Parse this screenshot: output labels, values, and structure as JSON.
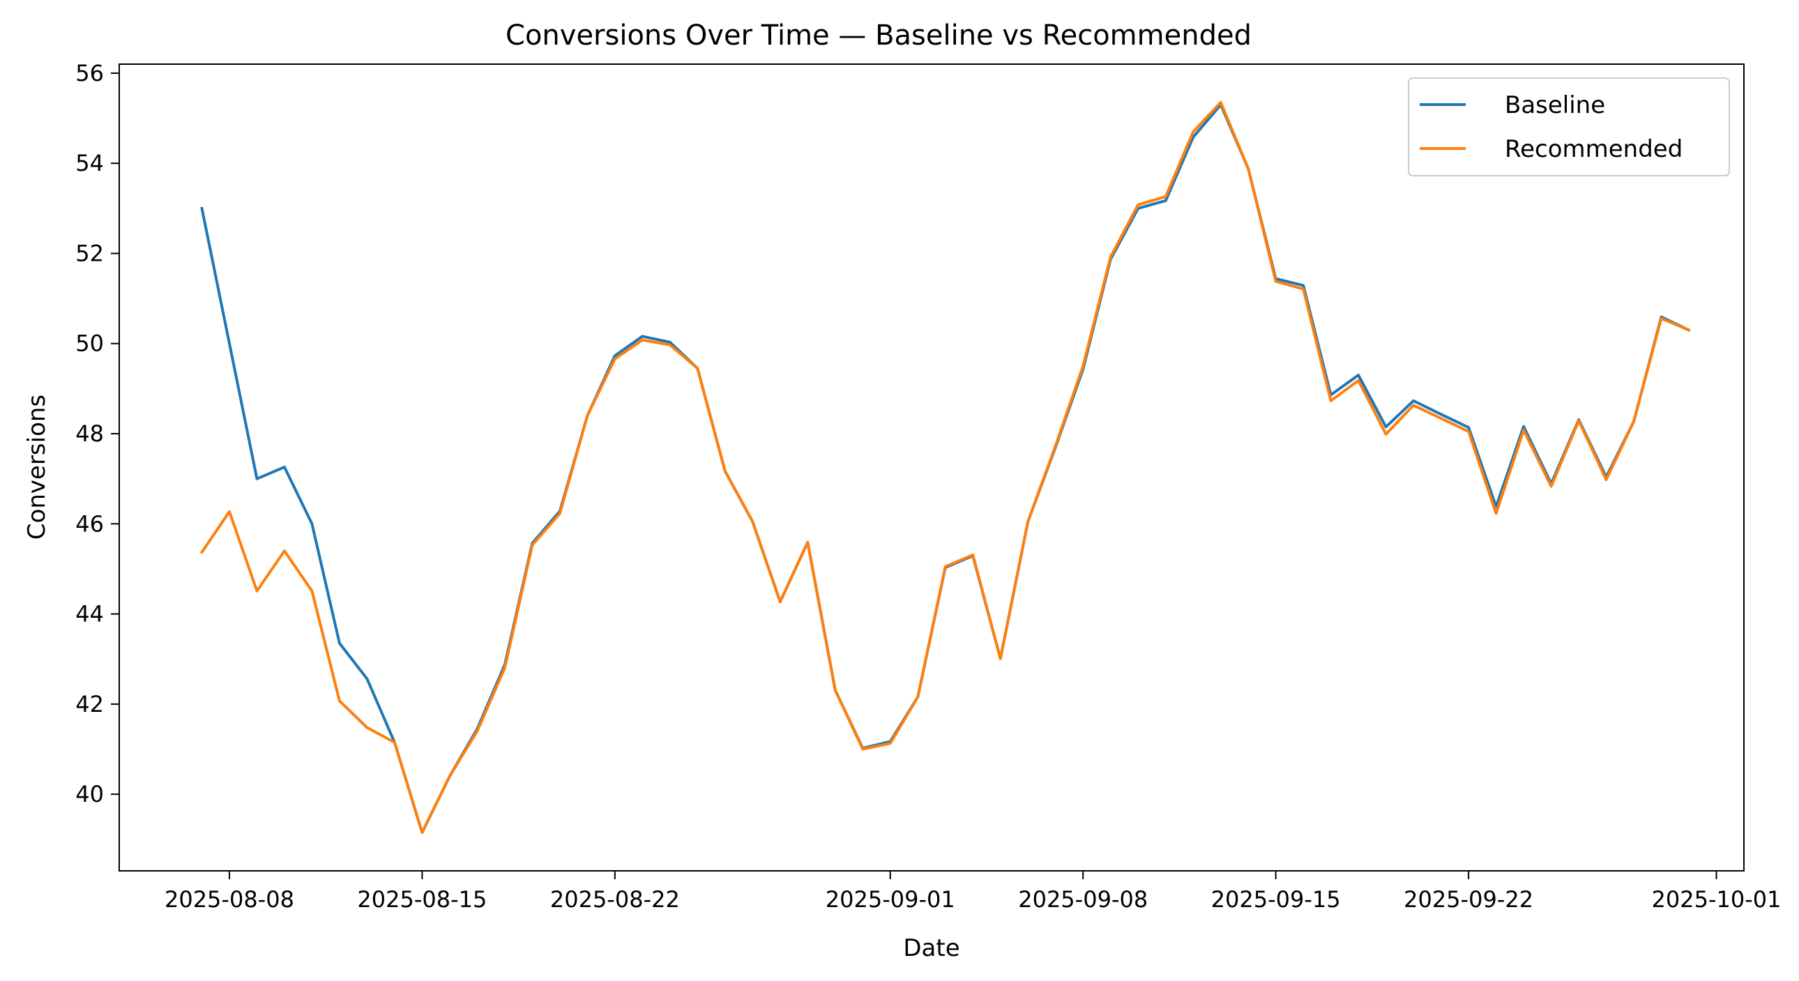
{
  "chart_data": {
    "type": "line",
    "title": "Conversions Over Time — Baseline vs Recommended",
    "xlabel": "Date",
    "ylabel": "Conversions",
    "start_date": "2025-08-07",
    "xlim": [
      "2025-08-04",
      "2025-10-02"
    ],
    "ylim": [
      38.3,
      56.2
    ],
    "x_ticks": [
      "2025-08-08",
      "2025-08-15",
      "2025-08-22",
      "2025-09-01",
      "2025-09-08",
      "2025-09-15",
      "2025-09-22",
      "2025-10-01"
    ],
    "y_ticks": [
      40,
      42,
      44,
      46,
      48,
      50,
      52,
      54,
      56
    ],
    "grid": false,
    "legend": "top-right",
    "series": [
      {
        "name": "Baseline",
        "color": "#1f77b4",
        "values": [
          53.0,
          50.0,
          47.0,
          47.26,
          46.0,
          43.35,
          42.56,
          41.15,
          39.15,
          40.4,
          41.45,
          42.87,
          45.57,
          46.28,
          48.4,
          49.73,
          50.16,
          50.03,
          49.45,
          47.17,
          46.05,
          44.27,
          45.59,
          42.31,
          41.02,
          41.17,
          42.16,
          45.03,
          45.29,
          43.01,
          46.05,
          47.7,
          49.43,
          51.87,
          53.0,
          53.17,
          54.58,
          55.3,
          53.88,
          51.44,
          51.29,
          48.86,
          49.3,
          48.15,
          48.73,
          48.43,
          48.14,
          46.38,
          48.16,
          46.89,
          48.31,
          47.04,
          48.27,
          50.59,
          50.3
        ]
      },
      {
        "name": "Recommended",
        "color": "#ff7f0e",
        "values": [
          45.37,
          46.27,
          44.51,
          45.4,
          44.51,
          42.07,
          41.48,
          41.15,
          39.15,
          40.4,
          41.4,
          42.8,
          45.53,
          46.23,
          48.4,
          49.66,
          50.08,
          49.97,
          49.45,
          47.17,
          46.05,
          44.27,
          45.59,
          42.31,
          41.0,
          41.13,
          42.16,
          45.05,
          45.31,
          43.01,
          46.05,
          47.73,
          49.5,
          51.92,
          53.08,
          53.26,
          54.7,
          55.35,
          53.88,
          51.38,
          51.21,
          48.73,
          49.18,
          47.99,
          48.63,
          48.34,
          48.05,
          46.23,
          48.08,
          46.83,
          48.29,
          46.98,
          48.27,
          50.56,
          50.3
        ]
      }
    ]
  }
}
